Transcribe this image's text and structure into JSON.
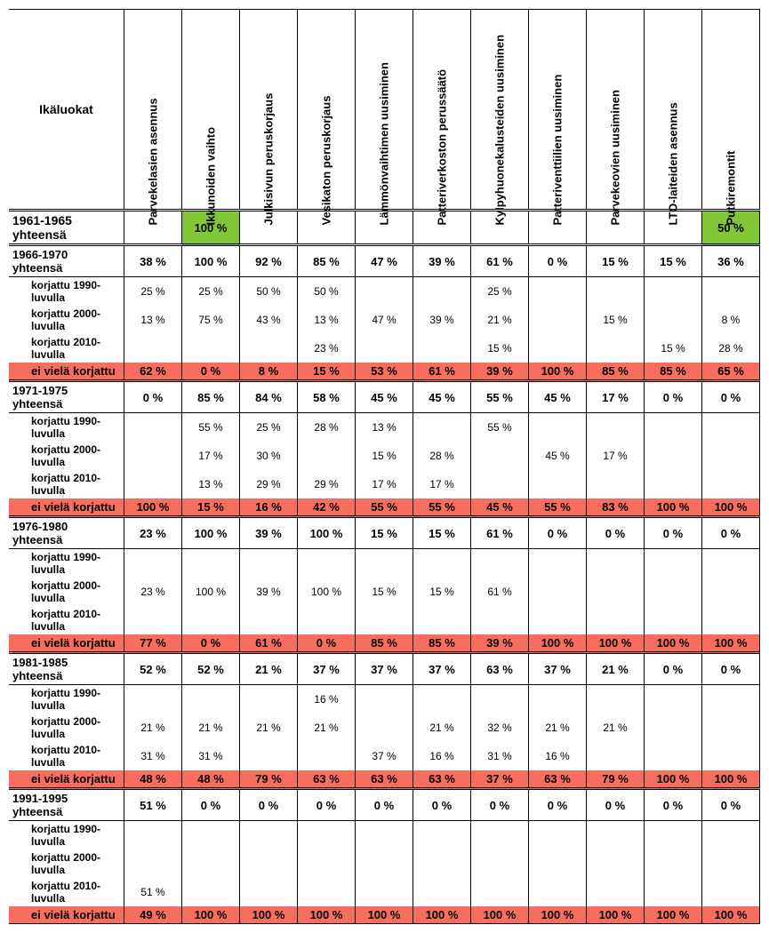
{
  "colors": {
    "green": "#82c836",
    "red": "#f76e5e",
    "border": "#000000"
  },
  "labels": {
    "corner": "Ikäluokat",
    "yhteensa": "yhteensä",
    "k1990": "korjattu 1990-luvulla",
    "k2000": "korjattu 2000-luvulla",
    "k2010": "korjattu 2010-luvulla",
    "eiviela": "ei vielä korjattu"
  },
  "columns": [
    "Parvekelasien asennus",
    "Ikkunoiden vaihto",
    "Julkisivun peruskorjaus",
    "Vesikaton peruskorjaus",
    "Lämmönvaihtimen uusiminen",
    "Patteriverkoston perussäätö",
    "Kylpyhuonekalusteiden uusiminen",
    "Patteriventtiilien uusiminen",
    "Parvekeovien uusiminen",
    "LTO-laiteiden asennus",
    "Putkiremontit"
  ],
  "groups": [
    {
      "range": "1961-1965",
      "total": [
        "",
        {
          "v": "100 %",
          "c": "green"
        },
        "",
        "",
        "",
        "",
        "",
        "",
        "",
        "",
        {
          "v": "50 %",
          "c": "green"
        }
      ],
      "rows": [],
      "notrep": null
    },
    {
      "range": "1966-1970",
      "total": [
        "38 %",
        "100 %",
        "92 %",
        "85 %",
        "47 %",
        "39 %",
        "61 %",
        "0 %",
        "15 %",
        "15 %",
        "36 %"
      ],
      "rows": [
        [
          "25 %",
          "25 %",
          "50 %",
          "50 %",
          "",
          "",
          "25 %",
          "",
          "",
          "",
          ""
        ],
        [
          "13 %",
          "75 %",
          "43 %",
          "13 %",
          "47 %",
          "39 %",
          "21 %",
          "",
          "15 %",
          "",
          "8 %"
        ],
        [
          "",
          "",
          "",
          "23 %",
          "",
          "",
          "15 %",
          "",
          "",
          "15 %",
          "28 %"
        ]
      ],
      "notrep": [
        "62 %",
        "0 %",
        "8 %",
        "15 %",
        "53 %",
        "61 %",
        "39 %",
        "100 %",
        "85 %",
        "85 %",
        "65 %"
      ]
    },
    {
      "range": "1971-1975",
      "total": [
        "0 %",
        "85 %",
        "84 %",
        "58 %",
        "45 %",
        "45 %",
        "55 %",
        "45 %",
        "17 %",
        "0 %",
        "0 %"
      ],
      "rows": [
        [
          "",
          "55 %",
          "25 %",
          "28 %",
          "13 %",
          "",
          "55 %",
          "",
          "",
          "",
          ""
        ],
        [
          "",
          "17 %",
          "30 %",
          "",
          "15 %",
          "28 %",
          "",
          "45 %",
          "17 %",
          "",
          ""
        ],
        [
          "",
          "13 %",
          "29 %",
          "29 %",
          "17 %",
          "17 %",
          "",
          "",
          "",
          "",
          ""
        ]
      ],
      "notrep": [
        "100 %",
        "15 %",
        "16 %",
        "42 %",
        "55 %",
        "55 %",
        "45 %",
        "55 %",
        "83 %",
        "100 %",
        "100 %"
      ]
    },
    {
      "range": "1976-1980",
      "total": [
        "23 %",
        "100 %",
        "39 %",
        "100 %",
        "15 %",
        "15 %",
        "61 %",
        "0 %",
        "0 %",
        "0 %",
        "0 %"
      ],
      "rows": [
        [
          "",
          "",
          "",
          "",
          "",
          "",
          "",
          "",
          "",
          "",
          ""
        ],
        [
          "23 %",
          "100 %",
          "39 %",
          "100 %",
          "15 %",
          "15 %",
          "61 %",
          "",
          "",
          "",
          ""
        ],
        [
          "",
          "",
          "",
          "",
          "",
          "",
          "",
          "",
          "",
          "",
          ""
        ]
      ],
      "notrep": [
        "77 %",
        "0 %",
        "61 %",
        "0 %",
        "85 %",
        "85 %",
        "39 %",
        "100 %",
        "100 %",
        "100 %",
        "100 %"
      ]
    },
    {
      "range": "1981-1985",
      "total": [
        "52 %",
        "52 %",
        "21 %",
        "37 %",
        "37 %",
        "37 %",
        "63 %",
        "37 %",
        "21 %",
        "0 %",
        "0 %"
      ],
      "rows": [
        [
          "",
          "",
          "",
          "16 %",
          "",
          "",
          "",
          "",
          "",
          "",
          ""
        ],
        [
          "21 %",
          "21 %",
          "21 %",
          "21 %",
          "",
          "21 %",
          "32 %",
          "21 %",
          "21 %",
          "",
          ""
        ],
        [
          "31 %",
          "31 %",
          "",
          "",
          "37 %",
          "16 %",
          "31 %",
          "16 %",
          "",
          "",
          ""
        ]
      ],
      "notrep": [
        "48 %",
        "48 %",
        "79 %",
        "63 %",
        "63 %",
        "63 %",
        "37 %",
        "63 %",
        "79 %",
        "100 %",
        "100 %"
      ]
    },
    {
      "range": "1991-1995",
      "total": [
        "51 %",
        "0 %",
        "0 %",
        "0 %",
        "0 %",
        "0 %",
        "0 %",
        "0 %",
        "0 %",
        "0 %",
        "0 %"
      ],
      "rows": [
        [
          "",
          "",
          "",
          "",
          "",
          "",
          "",
          "",
          "",
          "",
          ""
        ],
        [
          "",
          "",
          "",
          "",
          "",
          "",
          "",
          "",
          "",
          "",
          ""
        ],
        [
          "51 %",
          "",
          "",
          "",
          "",
          "",
          "",
          "",
          "",
          "",
          ""
        ]
      ],
      "notrep": [
        "49 %",
        "100 %",
        "100 %",
        "100 %",
        "100 %",
        "100 %",
        "100 %",
        "100 %",
        "100 %",
        "100 %",
        "100 %"
      ]
    }
  ]
}
